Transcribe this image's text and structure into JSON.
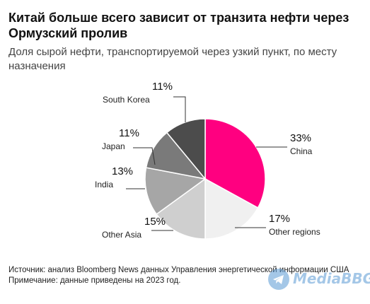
{
  "title": "Китай больше всего зависит от транзита нефти через Ормузский пролив",
  "subtitle": "Доля сырой нефти, транспортируемой через узкий пункт, по месту назначения",
  "chart_data": {
    "type": "pie",
    "start_angle_deg": 0,
    "direction": "clockwise",
    "slices": [
      {
        "label": "China",
        "value": 33,
        "display": "33%",
        "color": "#ff0080"
      },
      {
        "label": "Other regions",
        "value": 17,
        "display": "17%",
        "color": "#f0f0f0"
      },
      {
        "label": "Other Asia",
        "value": 15,
        "display": "15%",
        "color": "#cfcfcf"
      },
      {
        "label": "India",
        "value": 13,
        "display": "13%",
        "color": "#a6a6a6"
      },
      {
        "label": "Japan",
        "value": 11,
        "display": "11%",
        "color": "#7a7a7a"
      },
      {
        "label": "South Korea",
        "value": 11,
        "display": "11%",
        "color": "#4c4c4c"
      }
    ]
  },
  "source": {
    "line1": "Источник: анализ Bloomberg News данных Управления энергетической информации США",
    "line2": "Примечание: данные приведены на 2023 год."
  },
  "watermark": {
    "text": "MediaBBG",
    "icon": "telegram-icon",
    "color": "#5b9bd5"
  }
}
